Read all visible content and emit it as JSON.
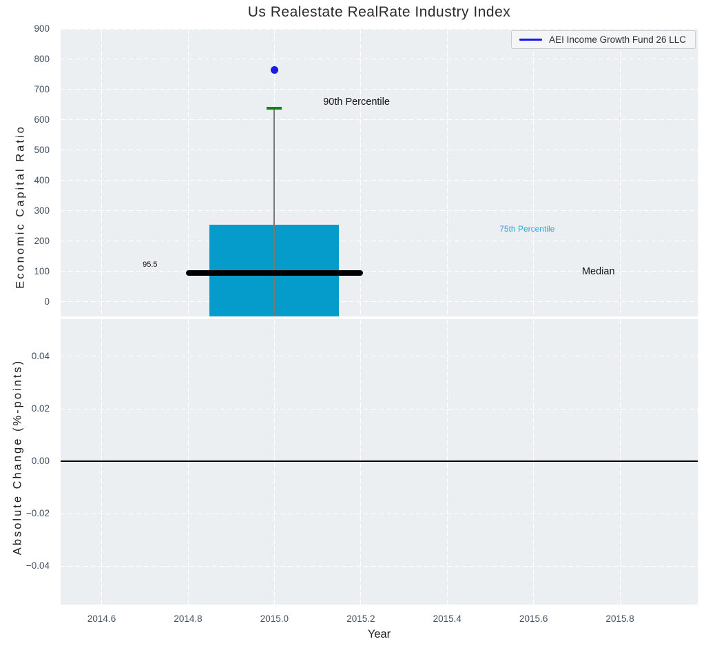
{
  "title": "Us Realestate RealRate Industry Index",
  "legend": {
    "label": "AEI Income Growth Fund 26 LLC"
  },
  "colors": {
    "plot_background": "#ebeff1",
    "grid": "#ffffff",
    "tick_label": "#3f4f63",
    "text": "#1d1d1d",
    "box_fill": "#059bcb",
    "median_line": "#000000",
    "p90_cap_green": "#138413",
    "whisker_gray": "#777777",
    "point_blue": "#1b1be4",
    "legend_line_blue": "#1414f0",
    "annotation_cyan": "#2fa4d4",
    "zero_line": "#000000"
  },
  "chart_data": [
    {
      "type": "boxplot",
      "subplot": "top",
      "title": "Us Realestate RealRate Industry Index",
      "ylabel": "Economic Capital Ratio",
      "xlim": [
        2014.505,
        2015.98
      ],
      "ylim": [
        -48,
        900
      ],
      "grid": "white dashed, on",
      "legend_position": "upper right",
      "xticks": [
        {
          "v": 2014.6,
          "label": "2014.6"
        },
        {
          "v": 2014.8,
          "label": "2014.8"
        },
        {
          "v": 2015.0,
          "label": "2015.0"
        },
        {
          "v": 2015.2,
          "label": "2015.2"
        },
        {
          "v": 2015.4,
          "label": "2015.4"
        },
        {
          "v": 2015.6,
          "label": "2015.6"
        },
        {
          "v": 2015.8,
          "label": "2015.8"
        }
      ],
      "yticks": [
        {
          "v": 0,
          "label": "0"
        },
        {
          "v": 100,
          "label": "100"
        },
        {
          "v": 200,
          "label": "200"
        },
        {
          "v": 300,
          "label": "300"
        },
        {
          "v": 400,
          "label": "400"
        },
        {
          "v": 500,
          "label": "500"
        },
        {
          "v": 600,
          "label": "600"
        },
        {
          "v": 700,
          "label": "700"
        },
        {
          "v": 800,
          "label": "800"
        },
        {
          "v": 900,
          "label": "900"
        }
      ],
      "series": [
        {
          "name": "AEI Income Growth Fund 26 LLC",
          "color": "#1b1be4",
          "marker": "circle",
          "points": [
            {
              "x": 2015.0,
              "y": 765
            }
          ]
        }
      ],
      "box": {
        "x": 2015.0,
        "box_width": 0.3,
        "p90": 638,
        "q3": 255,
        "median": 95.5,
        "median_line_halfwidth": 0.205,
        "q1": null,
        "q1_note": "box bottom extends below visible axis (clipped at ylim min)"
      },
      "annotations": [
        {
          "text": "95.5",
          "x": 2014.712,
          "y": 122,
          "color": "#111111",
          "size": 11
        },
        {
          "text": "90th Percentile",
          "x": 2015.19,
          "y": 658,
          "color": "#111111",
          "size": 14.5
        },
        {
          "text": "75th Percentile",
          "x": 2015.585,
          "y": 241,
          "color": "#2fa4d4",
          "size": 12
        },
        {
          "text": "Median",
          "x": 2015.75,
          "y": 99,
          "color": "#111111",
          "size": 14.5
        }
      ]
    },
    {
      "type": "line",
      "subplot": "bottom",
      "xlabel": "Year",
      "ylabel": "Absolute Change (%-points)",
      "xlim": [
        2014.505,
        2015.98
      ],
      "ylim": [
        -0.0547,
        0.0542
      ],
      "grid": "white dashed, on",
      "xticks": [
        {
          "v": 2014.6,
          "label": "2014.6"
        },
        {
          "v": 2014.8,
          "label": "2014.8"
        },
        {
          "v": 2015.0,
          "label": "2015.0"
        },
        {
          "v": 2015.2,
          "label": "2015.2"
        },
        {
          "v": 2015.4,
          "label": "2015.4"
        },
        {
          "v": 2015.6,
          "label": "2015.6"
        },
        {
          "v": 2015.8,
          "label": "2015.8"
        }
      ],
      "yticks": [
        {
          "v": 0.04,
          "label": "0.04"
        },
        {
          "v": 0.02,
          "label": "0.02"
        },
        {
          "v": 0.0,
          "label": "0.00"
        },
        {
          "v": -0.02,
          "label": "−0.02"
        },
        {
          "v": -0.04,
          "label": "−0.04"
        }
      ],
      "zero_line": {
        "y": 0.0,
        "color": "#000000",
        "width": 2
      },
      "series": []
    }
  ]
}
